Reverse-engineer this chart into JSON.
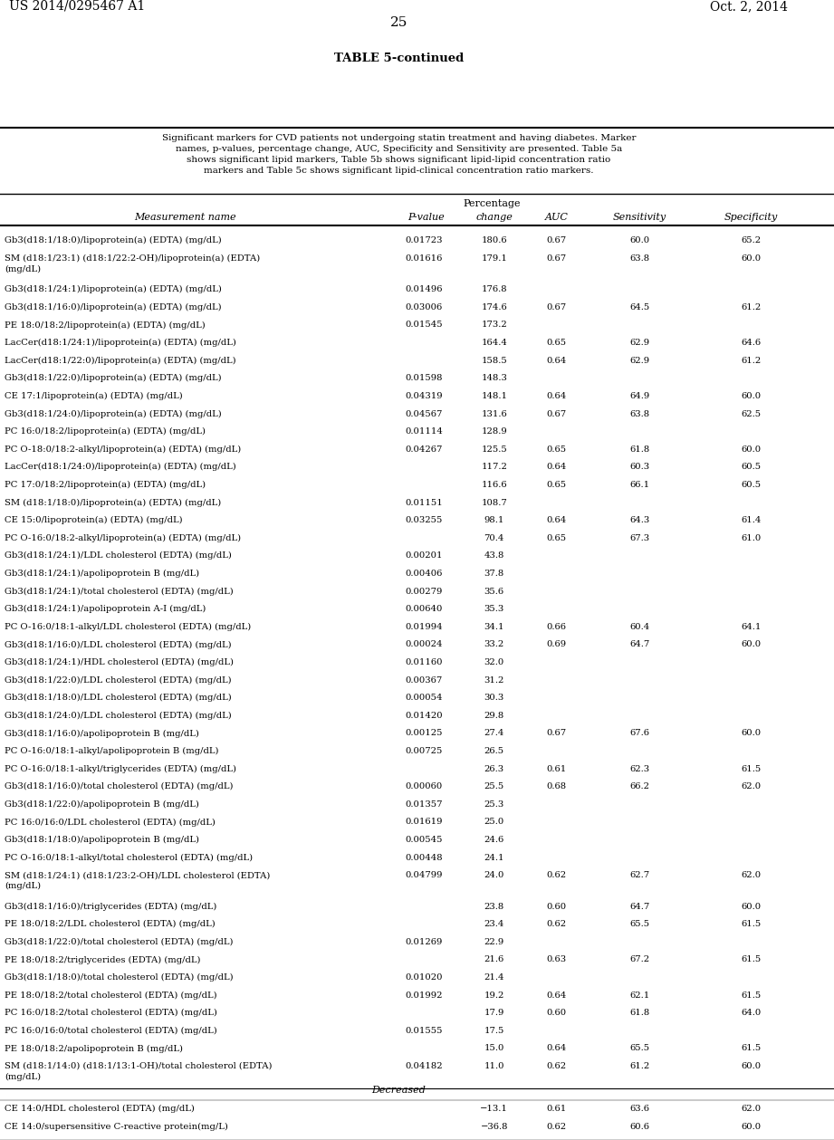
{
  "header_left": "US 2014/0295467 A1",
  "header_right": "Oct. 2, 2014",
  "page_number": "25",
  "table_title": "TABLE 5-continued",
  "caption": "Significant markers for CVD patients not undergoing statin treatment and having diabetes. Marker\nnames, p-values, percentage change, AUC, Specificity and Sensitivity are presented. Table 5a\nshows significant lipid markers, Table 5b shows significant lipid-lipid concentration ratio\nmarkers and Table 5c shows significant lipid-clinical concentration ratio markers.",
  "rows": [
    [
      "Gb3(d18:1/18:0)/lipoprotein(a) (EDTA) (mg/dL)",
      "0.01723",
      "180.6",
      "0.67",
      "60.0",
      "65.2"
    ],
    [
      "SM (d18:1/23:1) (d18:1/22:2-OH)/lipoprotein(a) (EDTA)\n(mg/dL)",
      "0.01616",
      "179.1",
      "0.67",
      "63.8",
      "60.0"
    ],
    [
      "Gb3(d18:1/24:1)/lipoprotein(a) (EDTA) (mg/dL)",
      "0.01496",
      "176.8",
      "",
      "",
      ""
    ],
    [
      "Gb3(d18:1/16:0)/lipoprotein(a) (EDTA) (mg/dL)",
      "0.03006",
      "174.6",
      "0.67",
      "64.5",
      "61.2"
    ],
    [
      "PE 18:0/18:2/lipoprotein(a) (EDTA) (mg/dL)",
      "0.01545",
      "173.2",
      "",
      "",
      ""
    ],
    [
      "LacCer(d18:1/24:1)/lipoprotein(a) (EDTA) (mg/dL)",
      "",
      "164.4",
      "0.65",
      "62.9",
      "64.6"
    ],
    [
      "LacCer(d18:1/22:0)/lipoprotein(a) (EDTA) (mg/dL)",
      "",
      "158.5",
      "0.64",
      "62.9",
      "61.2"
    ],
    [
      "Gb3(d18:1/22:0)/lipoprotein(a) (EDTA) (mg/dL)",
      "0.01598",
      "148.3",
      "",
      "",
      ""
    ],
    [
      "CE 17:1/lipoprotein(a) (EDTA) (mg/dL)",
      "0.04319",
      "148.1",
      "0.64",
      "64.9",
      "60.0"
    ],
    [
      "Gb3(d18:1/24:0)/lipoprotein(a) (EDTA) (mg/dL)",
      "0.04567",
      "131.6",
      "0.67",
      "63.8",
      "62.5"
    ],
    [
      "PC 16:0/18:2/lipoprotein(a) (EDTA) (mg/dL)",
      "0.01114",
      "128.9",
      "",
      "",
      ""
    ],
    [
      "PC O-18:0/18:2-alkyl/lipoprotein(a) (EDTA) (mg/dL)",
      "0.04267",
      "125.5",
      "0.65",
      "61.8",
      "60.0"
    ],
    [
      "LacCer(d18:1/24:0)/lipoprotein(a) (EDTA) (mg/dL)",
      "",
      "117.2",
      "0.64",
      "60.3",
      "60.5"
    ],
    [
      "PC 17:0/18:2/lipoprotein(a) (EDTA) (mg/dL)",
      "",
      "116.6",
      "0.65",
      "66.1",
      "60.5"
    ],
    [
      "SM (d18:1/18:0)/lipoprotein(a) (EDTA) (mg/dL)",
      "0.01151",
      "108.7",
      "",
      "",
      ""
    ],
    [
      "CE 15:0/lipoprotein(a) (EDTA) (mg/dL)",
      "0.03255",
      "98.1",
      "0.64",
      "64.3",
      "61.4"
    ],
    [
      "PC O-16:0/18:2-alkyl/lipoprotein(a) (EDTA) (mg/dL)",
      "",
      "70.4",
      "0.65",
      "67.3",
      "61.0"
    ],
    [
      "Gb3(d18:1/24:1)/LDL cholesterol (EDTA) (mg/dL)",
      "0.00201",
      "43.8",
      "",
      "",
      ""
    ],
    [
      "Gb3(d18:1/24:1)/apolipoprotein B (mg/dL)",
      "0.00406",
      "37.8",
      "",
      "",
      ""
    ],
    [
      "Gb3(d18:1/24:1)/total cholesterol (EDTA) (mg/dL)",
      "0.00279",
      "35.6",
      "",
      "",
      ""
    ],
    [
      "Gb3(d18:1/24:1)/apolipoprotein A-I (mg/dL)",
      "0.00640",
      "35.3",
      "",
      "",
      ""
    ],
    [
      "PC O-16:0/18:1-alkyl/LDL cholesterol (EDTA) (mg/dL)",
      "0.01994",
      "34.1",
      "0.66",
      "60.4",
      "64.1"
    ],
    [
      "Gb3(d18:1/16:0)/LDL cholesterol (EDTA) (mg/dL)",
      "0.00024",
      "33.2",
      "0.69",
      "64.7",
      "60.0"
    ],
    [
      "Gb3(d18:1/24:1)/HDL cholesterol (EDTA) (mg/dL)",
      "0.01160",
      "32.0",
      "",
      "",
      ""
    ],
    [
      "Gb3(d18:1/22:0)/LDL cholesterol (EDTA) (mg/dL)",
      "0.00367",
      "31.2",
      "",
      "",
      ""
    ],
    [
      "Gb3(d18:1/18:0)/LDL cholesterol (EDTA) (mg/dL)",
      "0.00054",
      "30.3",
      "",
      "",
      ""
    ],
    [
      "Gb3(d18:1/24:0)/LDL cholesterol (EDTA) (mg/dL)",
      "0.01420",
      "29.8",
      "",
      "",
      ""
    ],
    [
      "Gb3(d18:1/16:0)/apolipoprotein B (mg/dL)",
      "0.00125",
      "27.4",
      "0.67",
      "67.6",
      "60.0"
    ],
    [
      "PC O-16:0/18:1-alkyl/apolipoprotein B (mg/dL)",
      "0.00725",
      "26.5",
      "",
      "",
      ""
    ],
    [
      "PC O-16:0/18:1-alkyl/triglycerides (EDTA) (mg/dL)",
      "",
      "26.3",
      "0.61",
      "62.3",
      "61.5"
    ],
    [
      "Gb3(d18:1/16:0)/total cholesterol (EDTA) (mg/dL)",
      "0.00060",
      "25.5",
      "0.68",
      "66.2",
      "62.0"
    ],
    [
      "Gb3(d18:1/22:0)/apolipoprotein B (mg/dL)",
      "0.01357",
      "25.3",
      "",
      "",
      ""
    ],
    [
      "PC 16:0/16:0/LDL cholesterol (EDTA) (mg/dL)",
      "0.01619",
      "25.0",
      "",
      "",
      ""
    ],
    [
      "Gb3(d18:1/18:0)/apolipoprotein B (mg/dL)",
      "0.00545",
      "24.6",
      "",
      "",
      ""
    ],
    [
      "PC O-16:0/18:1-alkyl/total cholesterol (EDTA) (mg/dL)",
      "0.00448",
      "24.1",
      "",
      "",
      ""
    ],
    [
      "SM (d18:1/24:1) (d18:1/23:2-OH)/LDL cholesterol (EDTA)\n(mg/dL)",
      "0.04799",
      "24.0",
      "0.62",
      "62.7",
      "62.0"
    ],
    [
      "Gb3(d18:1/16:0)/triglycerides (EDTA) (mg/dL)",
      "",
      "23.8",
      "0.60",
      "64.7",
      "60.0"
    ],
    [
      "PE 18:0/18:2/LDL cholesterol (EDTA) (mg/dL)",
      "",
      "23.4",
      "0.62",
      "65.5",
      "61.5"
    ],
    [
      "Gb3(d18:1/22:0)/total cholesterol (EDTA) (mg/dL)",
      "0.01269",
      "22.9",
      "",
      "",
      ""
    ],
    [
      "PE 18:0/18:2/triglycerides (EDTA) (mg/dL)",
      "",
      "21.6",
      "0.63",
      "67.2",
      "61.5"
    ],
    [
      "Gb3(d18:1/18:0)/total cholesterol (EDTA) (mg/dL)",
      "0.01020",
      "21.4",
      "",
      "",
      ""
    ],
    [
      "PE 18:0/18:2/total cholesterol (EDTA) (mg/dL)",
      "0.01992",
      "19.2",
      "0.64",
      "62.1",
      "61.5"
    ],
    [
      "PC 16:0/18:2/total cholesterol (EDTA) (mg/dL)",
      "",
      "17.9",
      "0.60",
      "61.8",
      "64.0"
    ],
    [
      "PC 16:0/16:0/total cholesterol (EDTA) (mg/dL)",
      "0.01555",
      "17.5",
      "",
      "",
      ""
    ],
    [
      "PE 18:0/18:2/apolipoprotein B (mg/dL)",
      "",
      "15.0",
      "0.64",
      "65.5",
      "61.5"
    ],
    [
      "SM (d18:1/14:0) (d18:1/13:1-OH)/total cholesterol (EDTA)\n(mg/dL)",
      "0.04182",
      "11.0",
      "0.62",
      "61.2",
      "60.0"
    ],
    [
      "DECREASED_SEPARATOR",
      "",
      "",
      "",
      "",
      ""
    ],
    [
      "CE 14:0/HDL cholesterol (EDTA) (mg/dL)",
      "",
      "−13.1",
      "0.61",
      "63.6",
      "62.0"
    ],
    [
      "CE 14:0/supersensitive C-reactive protein(mg/L)",
      "",
      "−36.8",
      "0.62",
      "60.6",
      "60.0"
    ]
  ]
}
